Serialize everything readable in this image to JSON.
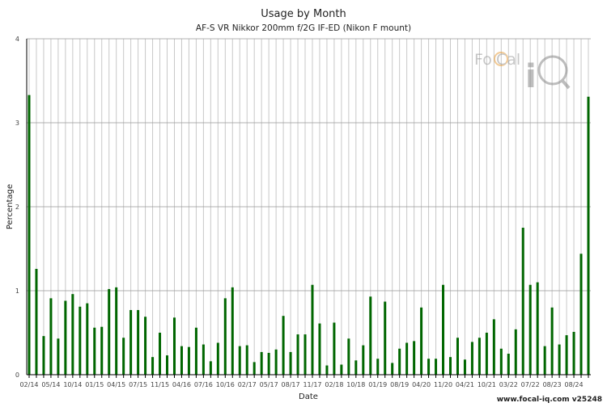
{
  "chart_data": {
    "type": "bar",
    "title": "Usage by Month",
    "subtitle": "AF-S VR Nikkor 200mm f/2G IF-ED (Nikon F mount)",
    "xlabel": "Date",
    "ylabel": "Percentage",
    "ylim": [
      0,
      4
    ],
    "yticks": [
      0,
      1,
      2,
      3,
      4
    ],
    "grid": true,
    "bar_color": "#006600",
    "values": [
      3.33,
      1.26,
      0.46,
      0.91,
      0.43,
      0.88,
      0.96,
      0.81,
      0.85,
      0.56,
      0.57,
      1.02,
      1.04,
      0.44,
      0.77,
      0.77,
      0.69,
      0.21,
      0.5,
      0.23,
      0.68,
      0.34,
      0.33,
      0.56,
      0.36,
      0.16,
      0.38,
      0.91,
      1.04,
      0.34,
      0.35,
      0.15,
      0.27,
      0.26,
      0.3,
      0.7,
      0.27,
      0.48,
      0.48,
      1.07,
      0.61,
      0.11,
      0.62,
      0.12,
      0.43,
      0.17,
      0.35,
      0.93,
      0.19,
      0.87,
      0.14,
      0.31,
      0.38,
      0.4,
      0.8,
      0.19,
      0.19,
      1.07,
      0.21,
      0.44,
      0.18,
      0.39,
      0.44,
      0.5,
      0.66,
      0.31,
      0.25,
      0.54,
      1.75,
      1.07,
      1.1,
      0.34,
      0.8,
      0.36,
      0.47,
      0.51,
      1.44,
      3.31
    ],
    "tick_labels": [
      {
        "bar": 0,
        "label": "02/14"
      },
      {
        "bar": 3,
        "label": "05/14"
      },
      {
        "bar": 6,
        "label": "10/14"
      },
      {
        "bar": 9,
        "label": "01/15"
      },
      {
        "bar": 12,
        "label": "04/15"
      },
      {
        "bar": 15,
        "label": "07/15"
      },
      {
        "bar": 18,
        "label": "11/15"
      },
      {
        "bar": 21,
        "label": "04/16"
      },
      {
        "bar": 24,
        "label": "07/16"
      },
      {
        "bar": 27,
        "label": "10/16"
      },
      {
        "bar": 30,
        "label": "02/17"
      },
      {
        "bar": 33,
        "label": "05/17"
      },
      {
        "bar": 36,
        "label": "08/17"
      },
      {
        "bar": 39,
        "label": "11/17"
      },
      {
        "bar": 42,
        "label": "02/18"
      },
      {
        "bar": 45,
        "label": "10/18"
      },
      {
        "bar": 48,
        "label": "01/19"
      },
      {
        "bar": 51,
        "label": "08/19"
      },
      {
        "bar": 54,
        "label": "04/20"
      },
      {
        "bar": 57,
        "label": "11/20"
      },
      {
        "bar": 60,
        "label": "04/21"
      },
      {
        "bar": 63,
        "label": "10/21"
      },
      {
        "bar": 66,
        "label": "03/22"
      },
      {
        "bar": 69,
        "label": "07/22"
      },
      {
        "bar": 72,
        "label": "08/23"
      },
      {
        "bar": 75,
        "label": "08/24"
      }
    ]
  },
  "logo": {
    "text": "FoCal iQ"
  },
  "footer": {
    "text": "www.focal-iq.com  v25248"
  }
}
